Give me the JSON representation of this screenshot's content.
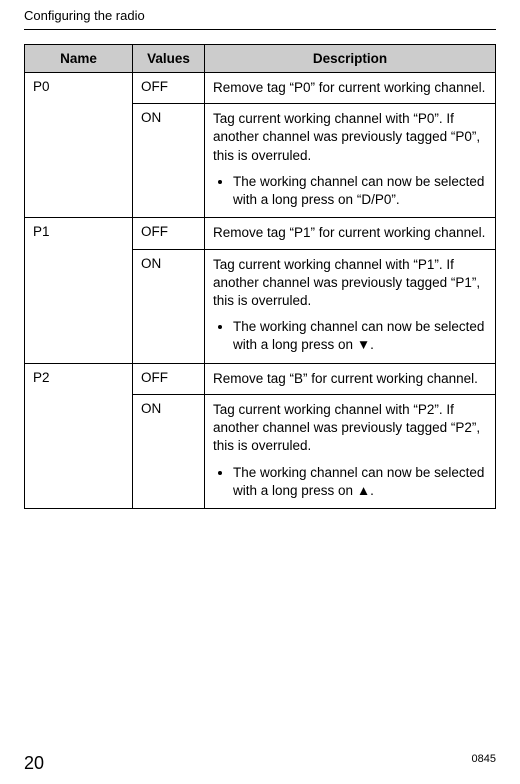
{
  "section_title": "Configuring the radio",
  "table": {
    "headers": {
      "name": "Name",
      "values": "Values",
      "description": "Description"
    },
    "rows": [
      {
        "name": "P0",
        "entries": [
          {
            "value": "OFF",
            "desc": "Remove tag “P0” for current working channel."
          },
          {
            "value": "ON",
            "desc": "Tag current working channel with “P0”. If another channel was previously tagged “P0”, this is overruled.",
            "bullet": "The working channel can now be selected with a long press on “D/P0”."
          }
        ]
      },
      {
        "name": "P1",
        "entries": [
          {
            "value": "OFF",
            "desc": "Remove tag “P1” for current working channel."
          },
          {
            "value": "ON",
            "desc": "Tag current working channel with “P1”. If another channel was previously tagged “P1”, this is overruled.",
            "bullet": "The working channel can now be selected with a long press on ▼."
          }
        ]
      },
      {
        "name": "P2",
        "entries": [
          {
            "value": "OFF",
            "desc": "Remove tag “B” for current working channel."
          },
          {
            "value": "ON",
            "desc": "Tag current working channel with “P2”. If another channel was previously tagged “P2”, this is overruled.",
            "bullet": "The working channel can now be selected with a long press on ▲."
          }
        ]
      }
    ]
  },
  "footer": {
    "page_number": "20",
    "doc_code": "0845"
  },
  "colors": {
    "header_bg": "#cccccc",
    "border": "#000000",
    "text": "#000000",
    "background": "#ffffff"
  }
}
